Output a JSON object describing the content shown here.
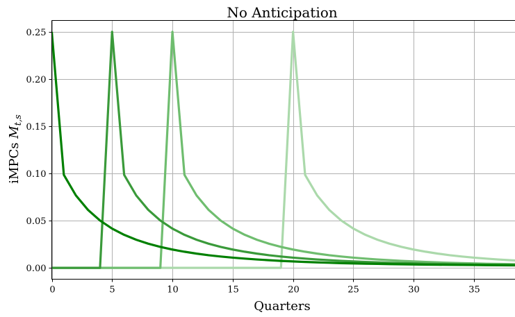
{
  "chart_data": {
    "type": "line",
    "title": "No Anticipation",
    "xlabel": "Quarters",
    "ylabel_main": "iMPCs ",
    "ylabel_math": "M",
    "ylabel_sub": "t,s",
    "xlim": [
      0,
      38.4
    ],
    "ylim": [
      -0.012,
      0.262
    ],
    "xticks": [
      0,
      5,
      10,
      15,
      20,
      25,
      30,
      35
    ],
    "xtick_labels": [
      "0",
      "5",
      "10",
      "15",
      "20",
      "25",
      "30",
      "35"
    ],
    "yticks": [
      0.0,
      0.05,
      0.1,
      0.15,
      0.2,
      0.25
    ],
    "ytick_labels": [
      "0.00",
      "0.05",
      "0.10",
      "0.15",
      "0.20",
      "0.25"
    ],
    "grid": true,
    "x": [
      0,
      1,
      2,
      3,
      4,
      5,
      6,
      7,
      8,
      9,
      10,
      11,
      12,
      13,
      14,
      15,
      16,
      17,
      18,
      19,
      20,
      21,
      22,
      23,
      24,
      25,
      26,
      27,
      28,
      29,
      30,
      31,
      32,
      33,
      34,
      35,
      36,
      37,
      38,
      39
    ],
    "series": [
      {
        "shock_quarter": 0,
        "color": "#008000",
        "values": [
          0.25,
          0.0985,
          0.0767,
          0.0614,
          0.0501,
          0.0416,
          0.035,
          0.0298,
          0.0256,
          0.0222,
          0.0194,
          0.0171,
          0.0151,
          0.0134,
          0.012,
          0.0108,
          0.0098,
          0.0089,
          0.0081,
          0.0074,
          0.0068,
          0.0063,
          0.0058,
          0.0054,
          0.005,
          0.0047,
          0.0044,
          0.0042,
          0.004,
          0.0038,
          0.0036,
          0.0034,
          0.0033,
          0.0032,
          0.0031,
          0.003,
          0.0029,
          0.0028,
          0.0027,
          0.0026
        ]
      },
      {
        "shock_quarter": 5,
        "color": "#3a9a3a",
        "values": [
          0,
          0,
          0,
          0,
          0,
          0.25,
          0.0985,
          0.0767,
          0.0614,
          0.0501,
          0.0416,
          0.035,
          0.0298,
          0.0256,
          0.0222,
          0.0194,
          0.0171,
          0.0151,
          0.0134,
          0.012,
          0.0108,
          0.0098,
          0.0089,
          0.0081,
          0.0074,
          0.0068,
          0.0063,
          0.0058,
          0.0054,
          0.005,
          0.0047,
          0.0044,
          0.0042,
          0.004,
          0.0038,
          0.0036,
          0.0034,
          0.0033,
          0.0032,
          0.0031
        ]
      },
      {
        "shock_quarter": 10,
        "color": "#6fbd6f",
        "values": [
          0,
          0,
          0,
          0,
          0,
          0,
          0,
          0,
          0,
          0,
          0.25,
          0.0985,
          0.0767,
          0.0614,
          0.0501,
          0.0416,
          0.035,
          0.0298,
          0.0256,
          0.0222,
          0.0194,
          0.0171,
          0.0151,
          0.0134,
          0.012,
          0.0108,
          0.0098,
          0.0089,
          0.0081,
          0.0074,
          0.0068,
          0.0063,
          0.0058,
          0.0054,
          0.005,
          0.0047,
          0.0044,
          0.0042,
          0.004,
          0.0038
        ]
      },
      {
        "shock_quarter": 20,
        "color": "#abd9ab",
        "values": [
          0,
          0,
          0,
          0,
          0,
          0,
          0,
          0,
          0,
          0,
          0,
          0,
          0,
          0,
          0,
          0,
          0,
          0,
          0,
          0,
          0.25,
          0.0985,
          0.0767,
          0.0614,
          0.0501,
          0.0416,
          0.035,
          0.0298,
          0.0256,
          0.0222,
          0.0194,
          0.0171,
          0.0151,
          0.0134,
          0.012,
          0.0108,
          0.0098,
          0.0089,
          0.0081,
          0.0074
        ]
      }
    ]
  }
}
